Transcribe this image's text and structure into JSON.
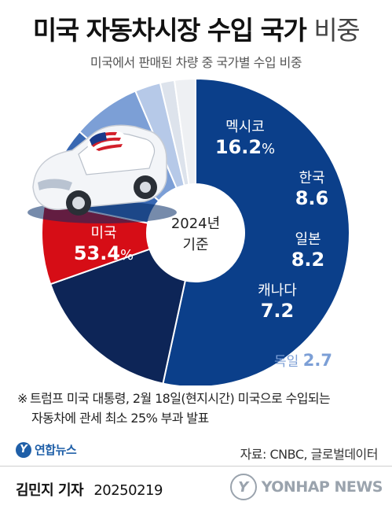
{
  "header": {
    "title_bold": "미국 자동차시장 수입 국가",
    "title_light": "비중",
    "subtitle": "미국에서 판매된 차량 중 국가별 수입 비중"
  },
  "chart_data": {
    "type": "pie",
    "variant": "donut",
    "center_label": [
      "2024년",
      "기준"
    ],
    "unit": "%",
    "slices": [
      {
        "label": "미국",
        "value": 53.4,
        "display": "53.4",
        "show_pct": true,
        "color": "#0b3f8a"
      },
      {
        "label": "멕시코",
        "value": 16.2,
        "display": "16.2",
        "show_pct": true,
        "color": "#0d2557"
      },
      {
        "label": "한국",
        "value": 8.6,
        "display": "8.6",
        "show_pct": false,
        "color": "#d60d16"
      },
      {
        "label": "일본",
        "value": 8.2,
        "display": "8.2",
        "show_pct": false,
        "color": "#3968b2"
      },
      {
        "label": "캐나다",
        "value": 7.2,
        "display": "7.2",
        "show_pct": false,
        "color": "#7c9fd6"
      },
      {
        "label": "독일",
        "value": 2.7,
        "display": "2.7",
        "show_pct": false,
        "color": "#b6c9e8"
      },
      {
        "label": "",
        "value": 1.5,
        "display": "",
        "show_pct": false,
        "color": "#dde3ec"
      },
      {
        "label": "",
        "value": 2.2,
        "display": "",
        "show_pct": false,
        "color": "#eef0f3"
      }
    ]
  },
  "note": {
    "mark": "※",
    "line1": "트럼프 미국 대통령, 2월 18일(현지시간) 미국으로 수입되는",
    "line2": "자동차에 관세 최소 25% 부과 발표"
  },
  "source": "자료: CNBC, 글로벌데이터",
  "logo": {
    "badge": "Y",
    "text": "연합뉴스"
  },
  "byline": {
    "name": "김민지 기자",
    "date": "20250219"
  },
  "agency": {
    "badge": "Y",
    "name": "YONHAP NEWS"
  }
}
